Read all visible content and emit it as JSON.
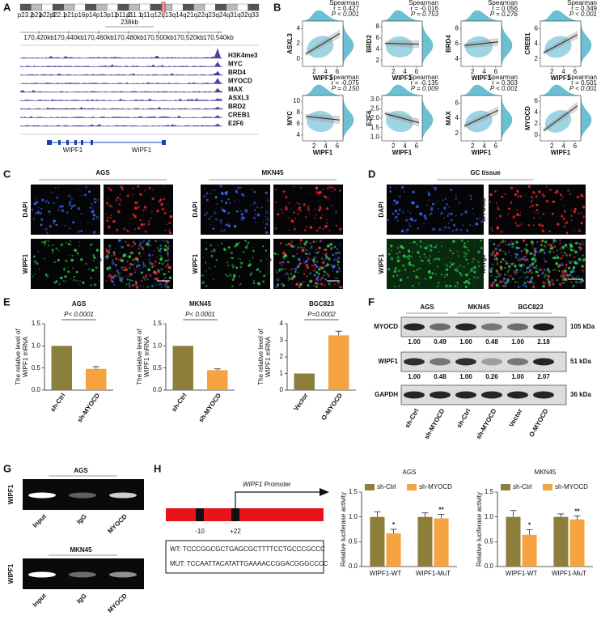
{
  "panel_labels": [
    "A",
    "B",
    "C",
    "D",
    "E",
    "F",
    "G",
    "H"
  ],
  "browser": {
    "bands": [
      "p23.2",
      "p23",
      "p22.3",
      "p22.1",
      "p21",
      "p16",
      "p14",
      "p13",
      "p12",
      "p11.2",
      "p11.1",
      "q11",
      "q12",
      "q13",
      "q14",
      "q21",
      "q22",
      "q23",
      "q24",
      "q31",
      "q32",
      "q33"
    ],
    "scale": "238kb",
    "coords": [
      "170,420kb",
      "170,440kb",
      "170,460kb",
      "170,480kb",
      "170,500kb",
      "170,520kb",
      "170,540kb"
    ],
    "tracks": [
      "H3K4me3",
      "MYC",
      "BRD4",
      "MYOCD",
      "MAX",
      "ASXL3",
      "BRD2",
      "CREB1",
      "E2F6"
    ],
    "genes": [
      "WIPF1",
      "WIPF1"
    ]
  },
  "correlations": {
    "xlabel": "WIPF1",
    "xlim": [
      0,
      7
    ],
    "xticks": [
      2,
      4,
      6
    ],
    "plots": [
      {
        "gene": "ASXL3",
        "method": "Spearman",
        "r": "r = 0.427",
        "p": "P < 0.001",
        "ylim": [
          -1,
          5
        ],
        "yticks": [
          0,
          2,
          4
        ]
      },
      {
        "gene": "BRD2",
        "method": "Spearman",
        "r": "r = -0.016",
        "p": "P = 0.753",
        "ylim": [
          1,
          9
        ],
        "yticks": [
          2,
          4,
          6,
          8
        ]
      },
      {
        "gene": "BRD4",
        "method": "Spearman",
        "r": "r = 0.056",
        "p": "P = 0.276",
        "ylim": [
          3,
          9
        ],
        "yticks": [
          4,
          6,
          8
        ]
      },
      {
        "gene": "CREB1",
        "method": "Spearman",
        "r": "r = 0.349",
        "p": "P < 0.001",
        "ylim": [
          1,
          7
        ],
        "yticks": [
          2,
          4,
          6
        ]
      },
      {
        "gene": "MYC",
        "method": "Spearman",
        "r": "r = -0.075",
        "p": "P = 0.150",
        "ylim": [
          3,
          11
        ],
        "yticks": [
          4,
          6,
          8,
          10
        ]
      },
      {
        "gene": "E2F6",
        "method": "Spearman",
        "r": "r = -0.135",
        "p": "P = 0.009",
        "ylim": [
          0.8,
          3.2
        ],
        "yticks": [
          {
            "value": 1,
            "label": "1.0"
          },
          1.5,
          {
            "value": 2,
            "label": "2.0"
          },
          2.5,
          {
            "value": 3,
            "label": "3.0"
          }
        ]
      },
      {
        "gene": "MAX",
        "method": "Spearman",
        "r": "r = 0.303",
        "p": "P < 0.001",
        "ylim": [
          1,
          7
        ],
        "yticks": [
          2,
          4,
          6
        ]
      },
      {
        "gene": "MYOCD",
        "method": "Spearman",
        "r": "r = 0.501",
        "p": "P < 0.001",
        "ylim": [
          -1,
          7
        ],
        "yticks": [
          0,
          2,
          4,
          6
        ]
      }
    ]
  },
  "if_c": {
    "groups": [
      "AGS",
      "MKN45"
    ],
    "channels": [
      "DAPI",
      "MYOCD",
      "WIPF1",
      "Merge"
    ],
    "scale_bar": "50μm"
  },
  "if_d": {
    "group": "GC tissue",
    "channels": [
      "DAPI",
      "MYOCD",
      "WIPF1",
      "Merge"
    ],
    "scale_bar": "50μm"
  },
  "chart_data": [
    {
      "type": "bar",
      "title": "AGS",
      "ylabel": [
        "The relative level of",
        "WIPF1 mRNA"
      ],
      "categories": [
        "sh-Ctrl",
        "sh-MYOCD"
      ],
      "values": [
        1.0,
        0.48
      ],
      "errors": [
        null,
        0.05
      ],
      "colors": [
        "#8c7f3c",
        "#f4a340"
      ],
      "ylim": [
        0,
        1.5
      ],
      "yticks": [
        {
          "value": 0,
          "label": "0.0"
        },
        0.5,
        {
          "value": 1,
          "label": "1.0"
        },
        1.5
      ],
      "annotation": "P< 0.0001"
    },
    {
      "type": "bar",
      "title": "MKN45",
      "ylabel": [
        "The relative level of",
        "WIPF1 mRNA"
      ],
      "categories": [
        "sh-Ctrl",
        "sh-MYOCD"
      ],
      "values": [
        1.0,
        0.45
      ],
      "errors": [
        null,
        0.03
      ],
      "colors": [
        "#8c7f3c",
        "#f4a340"
      ],
      "ylim": [
        0,
        1.5
      ],
      "yticks": [
        {
          "value": 0,
          "label": "0.0"
        },
        0.5,
        {
          "value": 1,
          "label": "1.0"
        },
        1.5
      ],
      "annotation": "P< 0.0001"
    },
    {
      "type": "bar",
      "title": "BGC823",
      "ylabel": [
        "The relative level of",
        "WIPF1 mRNA"
      ],
      "categories": [
        "Vector",
        "O-MYOCD"
      ],
      "values": [
        1.0,
        3.3
      ],
      "errors": [
        null,
        0.25
      ],
      "colors": [
        "#8c7f3c",
        "#f4a340"
      ],
      "ylim": [
        0,
        4
      ],
      "yticks": [
        0,
        1,
        2,
        3,
        4
      ],
      "annotation": "P=0.0002"
    },
    {
      "type": "bar",
      "title": "AGS",
      "ylabel": [
        "Relative luciferase activity"
      ],
      "categories": [
        "WIPF1-WT",
        "WIPF1-MuT"
      ],
      "series": [
        {
          "name": "sh-Ctrl",
          "color": "#8c7f3c",
          "values": [
            1.0,
            1.0
          ],
          "errors": [
            0.1,
            0.08
          ]
        },
        {
          "name": "sh-MYOCD",
          "color": "#f4a340",
          "values": [
            0.67,
            0.97
          ],
          "errors": [
            0.08,
            0.08
          ],
          "significance": [
            "*",
            "**"
          ]
        }
      ],
      "ylim": [
        0,
        1.5
      ],
      "yticks": [
        {
          "value": 0,
          "label": "0.0"
        },
        0.5,
        {
          "value": 1,
          "label": "1.0"
        },
        1.5
      ]
    },
    {
      "type": "bar",
      "title": "MKN45",
      "ylabel": [
        "Relative luciferase activity"
      ],
      "categories": [
        "WIPF1-WT",
        "WIPF1-MuT"
      ],
      "series": [
        {
          "name": "sh-Ctrl",
          "color": "#8c7f3c",
          "values": [
            1.0,
            1.0
          ],
          "errors": [
            0.13,
            0.06
          ]
        },
        {
          "name": "sh-MYOCD",
          "color": "#f4a340",
          "values": [
            0.64,
            0.95
          ],
          "errors": [
            0.1,
            0.07
          ],
          "significance": [
            "*",
            "**"
          ]
        }
      ],
      "ylim": [
        0,
        1.5
      ],
      "yticks": [
        {
          "value": 0,
          "label": "0.0"
        },
        0.5,
        {
          "value": 1,
          "label": "1.0"
        },
        1.5
      ]
    }
  ],
  "western": {
    "groups": [
      "AGS",
      "MKN45",
      "BGC823"
    ],
    "proteins": [
      {
        "name": "MYOCD",
        "size": "105 kDa",
        "quant": [
          "1.00",
          "0.49",
          "1.00",
          "0.48",
          "1.00",
          "2.18"
        ]
      },
      {
        "name": "WIPF1",
        "size": "51 kDa",
        "quant": [
          "1.00",
          "0.48",
          "1.00",
          "0.26",
          "1.00",
          "2.07"
        ]
      },
      {
        "name": "GAPDH",
        "size": "36 kDa"
      }
    ],
    "lanes": [
      "sh-Ctrl",
      "sh-MYOCD",
      "sh-Ctrl",
      "sh-MYOCD",
      "Vector",
      "O-MYOCD"
    ]
  },
  "chip": {
    "ylabel": "WIPF1",
    "blots": [
      {
        "group": "AGS",
        "lanes": [
          "Input",
          "IgG",
          "MYOCD"
        ]
      },
      {
        "group": "MKN45",
        "lanes": [
          "Input",
          "IgG",
          "MYOCD"
        ]
      }
    ]
  },
  "promoter": {
    "gene": "WIPF1",
    "label": "Promoter",
    "sites": [
      "-10",
      "+22"
    ],
    "sequences": [
      "WT: TCCCGGCGCTGAGCGCTTTTCCTGCCCGCCC",
      "MUT: TCCAATTACATATTGAAAACCGGACGGGCCCC"
    ]
  }
}
